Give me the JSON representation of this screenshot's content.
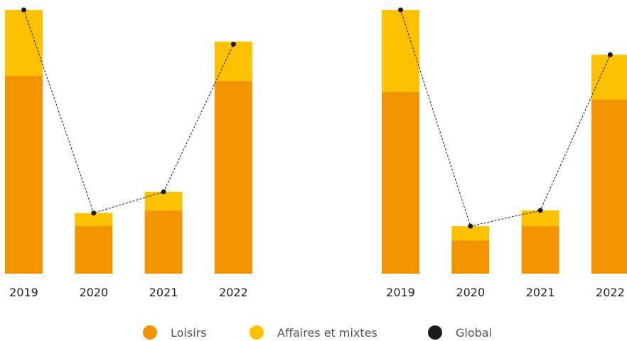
{
  "colors": {
    "loisirs": "#f29400",
    "affaires": "#fcc200",
    "global": "#1a1a1a"
  },
  "legend": [
    {
      "label": "Loisirs",
      "color_key": "loisirs",
      "icon": "circle"
    },
    {
      "label": "Affaires et mixtes",
      "color_key": "affaires",
      "icon": "circle"
    },
    {
      "label": "Global",
      "color_key": "global",
      "icon": "circle"
    }
  ],
  "chart_data": [
    {
      "type": "bar",
      "stacked": true,
      "categories": [
        "2019",
        "2020",
        "2021",
        "2022"
      ],
      "ylim": [
        0,
        100
      ],
      "series": [
        {
          "name": "Loisirs",
          "color_key": "loisirs",
          "values": [
            75,
            18,
            24,
            73
          ]
        },
        {
          "name": "Affaires et mixtes",
          "color_key": "affaires",
          "values": [
            25,
            5,
            7,
            15
          ]
        }
      ],
      "line": {
        "name": "Global",
        "color_key": "global",
        "style": "dashed",
        "values": [
          100,
          23,
          31,
          87
        ]
      }
    },
    {
      "type": "bar",
      "stacked": true,
      "categories": [
        "2019",
        "2020",
        "2021",
        "2022"
      ],
      "ylim": [
        0,
        100
      ],
      "series": [
        {
          "name": "Loisirs",
          "color_key": "loisirs",
          "values": [
            69,
            12.5,
            18,
            66
          ]
        },
        {
          "name": "Affaires et mixtes",
          "color_key": "affaires",
          "values": [
            31,
            5.5,
            6,
            17
          ]
        }
      ],
      "line": {
        "name": "Global",
        "color_key": "global",
        "style": "dashed",
        "values": [
          100,
          18,
          24,
          83
        ]
      }
    }
  ]
}
